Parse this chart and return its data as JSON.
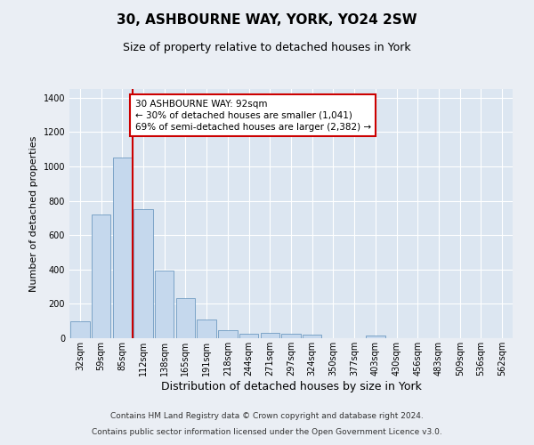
{
  "title": "30, ASHBOURNE WAY, YORK, YO24 2SW",
  "subtitle": "Size of property relative to detached houses in York",
  "xlabel": "Distribution of detached houses by size in York",
  "ylabel": "Number of detached properties",
  "categories": [
    "32sqm",
    "59sqm",
    "85sqm",
    "112sqm",
    "138sqm",
    "165sqm",
    "191sqm",
    "218sqm",
    "244sqm",
    "271sqm",
    "297sqm",
    "324sqm",
    "350sqm",
    "377sqm",
    "403sqm",
    "430sqm",
    "456sqm",
    "483sqm",
    "509sqm",
    "536sqm",
    "562sqm"
  ],
  "values": [
    100,
    720,
    1050,
    750,
    395,
    235,
    110,
    45,
    25,
    30,
    25,
    20,
    0,
    0,
    15,
    0,
    0,
    0,
    0,
    0,
    0
  ],
  "bar_color": "#c5d8ed",
  "bar_edge_color": "#5b8db8",
  "background_color": "#eaeef4",
  "plot_background": "#dce6f1",
  "grid_color": "#ffffff",
  "annotation_text": "30 ASHBOURNE WAY: 92sqm\n← 30% of detached houses are smaller (1,041)\n69% of semi-detached houses are larger (2,382) →",
  "annotation_box_color": "#ffffff",
  "annotation_box_edge": "#cc0000",
  "vline_color": "#cc0000",
  "vline_x": 2.5,
  "ylim": [
    0,
    1450
  ],
  "yticks": [
    0,
    200,
    400,
    600,
    800,
    1000,
    1200,
    1400
  ],
  "footer_line1": "Contains HM Land Registry data © Crown copyright and database right 2024.",
  "footer_line2": "Contains public sector information licensed under the Open Government Licence v3.0.",
  "title_fontsize": 11,
  "subtitle_fontsize": 9,
  "xlabel_fontsize": 9,
  "ylabel_fontsize": 8,
  "tick_fontsize": 7,
  "footer_fontsize": 6.5,
  "ann_fontsize": 7.5
}
